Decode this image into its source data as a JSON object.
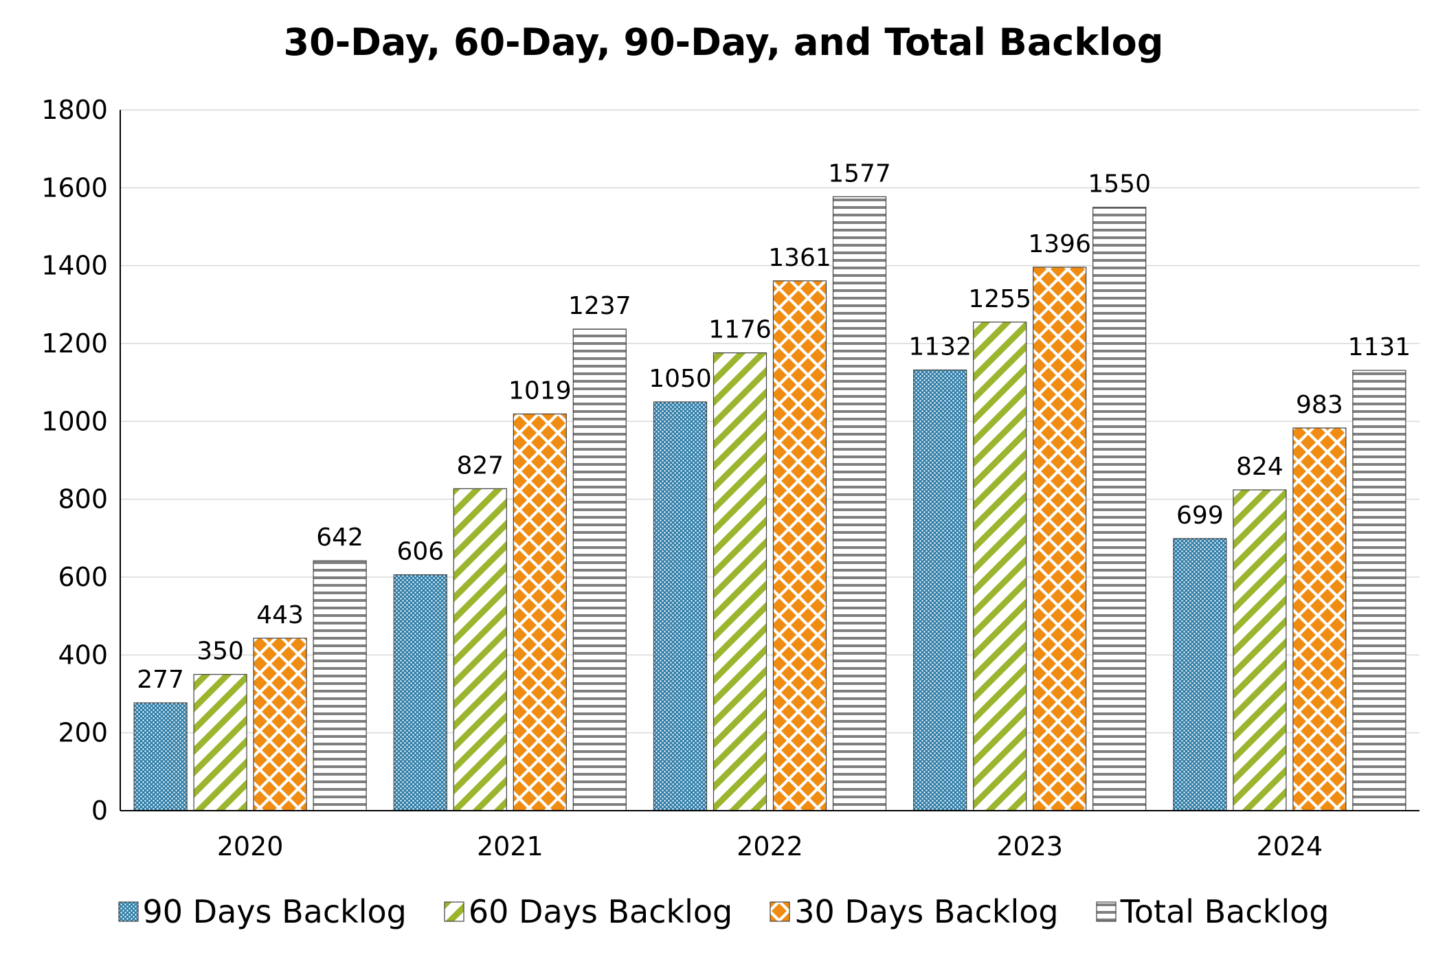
{
  "chart_data": {
    "type": "bar",
    "title": "30-Day, 60-Day, 90-Day, and Total Backlog",
    "xlabel": "",
    "ylabel": "",
    "categories": [
      "2020",
      "2021",
      "2022",
      "2023",
      "2024"
    ],
    "ylim": [
      0,
      1800
    ],
    "yticks": [
      "0",
      "200",
      "400",
      "600",
      "800",
      "1000",
      "1200",
      "1400",
      "1600",
      "1800"
    ],
    "grid": true,
    "legend_position": "bottom",
    "series": [
      {
        "name": "90 Days Backlog",
        "values": [
          277,
          606,
          1050,
          1132,
          699
        ],
        "color": "#2e7da8",
        "pattern": "dots"
      },
      {
        "name": "60 Days Backlog",
        "values": [
          350,
          827,
          1176,
          1255,
          824
        ],
        "color": "#9bb52e",
        "pattern": "diagonal-stripes"
      },
      {
        "name": "30 Days Backlog",
        "values": [
          443,
          1019,
          1361,
          1396,
          983
        ],
        "color": "#f08c12",
        "pattern": "diamonds"
      },
      {
        "name": "Total Backlog",
        "values": [
          642,
          1237,
          1577,
          1550,
          1131
        ],
        "color": "#7f7f7f",
        "pattern": "horizontal-stripes"
      }
    ]
  }
}
